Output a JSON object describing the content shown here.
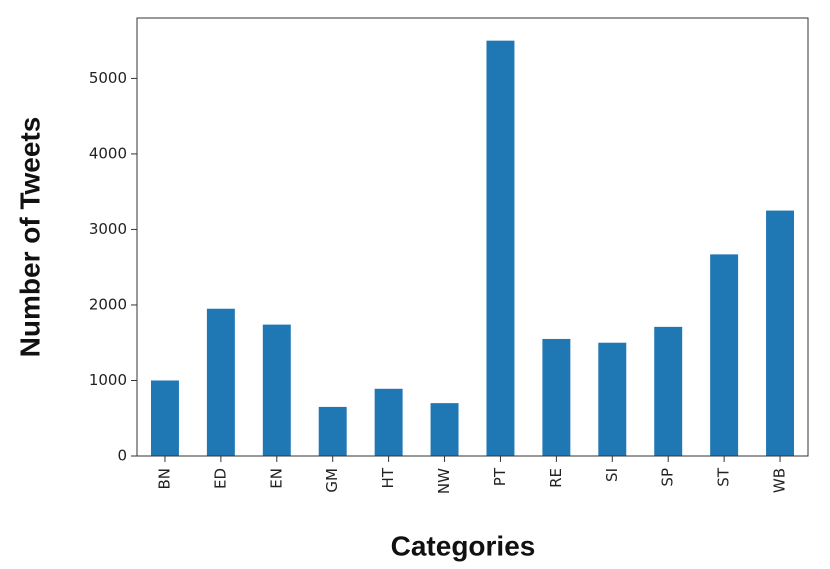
{
  "chart_data": {
    "type": "bar",
    "x_label": "Categories",
    "y_label": "Number of Tweets",
    "categories": [
      "BN",
      "ED",
      "EN",
      "GM",
      "HT",
      "NW",
      "PT",
      "RE",
      "SI",
      "SP",
      "ST",
      "WB"
    ],
    "values": [
      1000,
      1950,
      1740,
      650,
      890,
      700,
      5500,
      1550,
      1500,
      1710,
      2670,
      3250
    ],
    "color": "#1f77b4",
    "ylim": [
      0,
      5800
    ],
    "yticks": [
      0,
      1000,
      2000,
      3000,
      4000,
      5000
    ],
    "grid": false
  }
}
